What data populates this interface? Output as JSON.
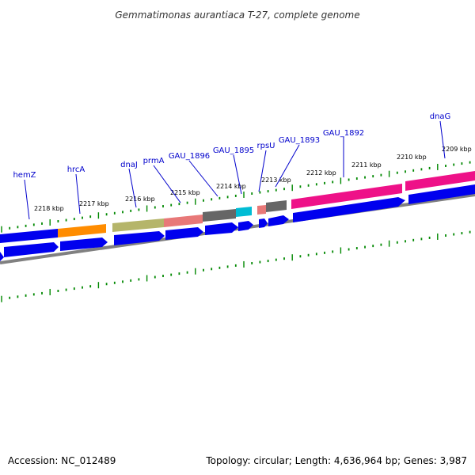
{
  "title": "Gemmatimonas aurantiaca T-27, complete genome",
  "footer": {
    "accession": "Accession: NC_012489",
    "summary": "Topology: circular; Length: 4,636,964 bp; Genes: 3,987"
  },
  "colors": {
    "forward_cds": "#0000ee",
    "backbone": "#808080",
    "gc_skew_ticks": "#008800",
    "gene_label": "#0000cc",
    "leader_line": "#0000cc"
  },
  "kbp_labels": [
    "2218 kbp",
    "2217 kbp",
    "2216 kbp",
    "2215 kbp",
    "2214 kbp",
    "2213 kbp",
    "2212 kbp",
    "2211 kbp",
    "2210 kbp",
    "2209 kbp"
  ],
  "gene_labels": [
    "hemZ",
    "hrcA",
    "dnaJ",
    "prmA",
    "GAU_1896",
    "GAU_1895",
    "rpsU",
    "GAU_1893",
    "GAU_1892",
    "dnaG"
  ],
  "feature_colors": {
    "hemZ": "#0000ee",
    "hrcA": "#ff8c00",
    "dnaJ": "#b5b56a",
    "prmA": "#e87878",
    "GAU_1896": "#666666",
    "GAU_1895": "#00bcd4",
    "rpsU": "#e87878",
    "GAU_1893": "#666666",
    "GAU_1892": "#ee1188",
    "dnaG": "#ee1188"
  }
}
